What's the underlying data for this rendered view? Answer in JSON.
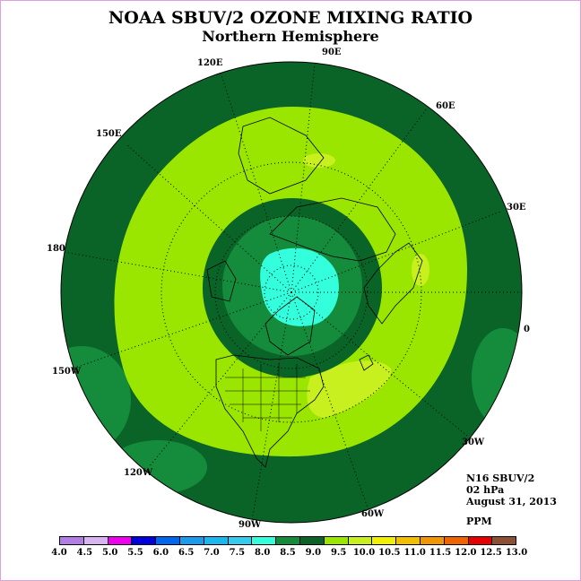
{
  "title": "NOAA SBUV/2 OZONE MIXING RATIO",
  "subtitle": "Northern Hemisphere",
  "info": {
    "satellite": "N16 SBUV/2",
    "pressure": "02 hPa",
    "date": "August 31, 2013"
  },
  "units": "PPM",
  "longitude_labels": [
    "0",
    "30E",
    "60E",
    "90E",
    "120E",
    "150E",
    "180",
    "150W",
    "120W",
    "90W",
    "60W",
    "30W"
  ],
  "colorbar": {
    "ticks": [
      "4.0",
      "4.5",
      "5.0",
      "5.5",
      "6.0",
      "6.5",
      "7.0",
      "7.5",
      "8.0",
      "8.5",
      "9.0",
      "9.5",
      "10.0",
      "10.5",
      "11.0",
      "11.5",
      "12.0",
      "12.5",
      "13.0"
    ],
    "colors": [
      "#b27ee6",
      "#d8b4f0",
      "#ee00ee",
      "#0000dd",
      "#0066ee",
      "#1a9cee",
      "#1ab8ee",
      "#33ccee",
      "#33ffdd",
      "#148c3c",
      "#0a6428",
      "#9be600",
      "#c8f01e",
      "#f0f000",
      "#f0c000",
      "#f09600",
      "#f06400",
      "#e60000",
      "#8c5032"
    ]
  },
  "map_colors": {
    "outer": "#0a6428",
    "ring_light": "#9be600",
    "ring_lighter": "#c8f01e",
    "ring_mid": "#148c3c",
    "core": "#33ffdd"
  }
}
